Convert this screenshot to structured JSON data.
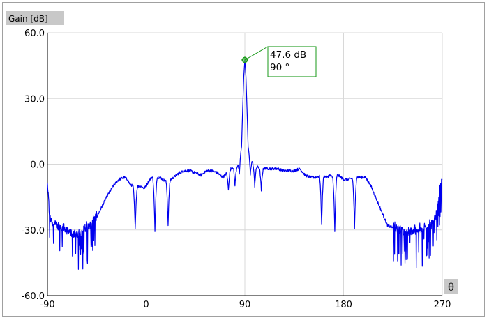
{
  "chart_data": {
    "type": "line",
    "ylabel": "Gain [dB]",
    "xlabel": "θ",
    "xlim": [
      -90,
      270
    ],
    "ylim": [
      -60,
      60
    ],
    "x_ticks": [
      -90,
      0,
      90,
      180,
      270
    ],
    "x_tick_labels": [
      "-90",
      "0",
      "90",
      "180",
      "270"
    ],
    "y_ticks": [
      60,
      30,
      0,
      -30,
      -60
    ],
    "y_tick_labels": [
      "60.0",
      "30.0",
      "0.0",
      "-30.0",
      "-60.0"
    ],
    "grid": true,
    "line_color": "#0000ee",
    "marker": {
      "x": 90,
      "y": 47.6,
      "label_gain": "47.6 dB",
      "label_angle": "90 °",
      "color": "#1a9a1a"
    },
    "envelope": {
      "x": [
        -90,
        -88,
        -85,
        -80,
        -75,
        -70,
        -65,
        -60,
        -55,
        -50,
        -45,
        -40,
        -35,
        -30,
        -25,
        -20,
        -17,
        -15,
        -12,
        -10,
        -7,
        -5,
        -2,
        0,
        2,
        5,
        8,
        10,
        13,
        15,
        20,
        25,
        30,
        35,
        40,
        45,
        50,
        55,
        60,
        65,
        70,
        75,
        80,
        83,
        85,
        87,
        88,
        89,
        90,
        91,
        92,
        93,
        95,
        97,
        100,
        105,
        110,
        115,
        120,
        125,
        130,
        135,
        140,
        145,
        150,
        155,
        160,
        165,
        167,
        170,
        175,
        180,
        185,
        190,
        195,
        200,
        205,
        210,
        215,
        220,
        225,
        230,
        235,
        240,
        245,
        250,
        255,
        260,
        265,
        268,
        270
      ],
      "y": [
        -9,
        -25,
        -28,
        -29,
        -30,
        -32,
        -33,
        -32,
        -30,
        -28,
        -24,
        -19,
        -14,
        -10,
        -7,
        -6,
        -7,
        -9,
        -10,
        -11,
        -10,
        -10,
        -11,
        -10,
        -8,
        -6,
        -7,
        -6,
        -6,
        -7,
        -8,
        -6,
        -4,
        -3,
        -3,
        -4,
        -5,
        -3,
        -3,
        -4,
        -6,
        -3,
        -1,
        -1,
        5,
        8,
        25,
        40,
        47.6,
        40,
        25,
        8,
        5,
        1,
        -1,
        -2,
        -2,
        -2,
        -2,
        -3,
        -3,
        -3,
        -2,
        -5,
        -6,
        -6,
        -5,
        -6,
        -5,
        -6,
        -5,
        -7,
        -7,
        -6,
        -6,
        -6,
        -10,
        -16,
        -22,
        -28,
        -29,
        -31,
        -31,
        -32,
        -31,
        -30,
        -30,
        -28,
        -24,
        -9,
        -7
      ]
    },
    "notches": [
      {
        "x": -10,
        "y": -30
      },
      {
        "x": 8,
        "y": -31
      },
      {
        "x": 20,
        "y": -28
      },
      {
        "x": 75,
        "y": -12
      },
      {
        "x": 81,
        "y": -10
      },
      {
        "x": 99,
        "y": -10
      },
      {
        "x": 105,
        "y": -12
      },
      {
        "x": 160,
        "y": -28
      },
      {
        "x": 172,
        "y": -31
      },
      {
        "x": 190,
        "y": -30
      },
      {
        "x": 85,
        "y": -5
      },
      {
        "x": 95,
        "y": -5
      }
    ]
  }
}
